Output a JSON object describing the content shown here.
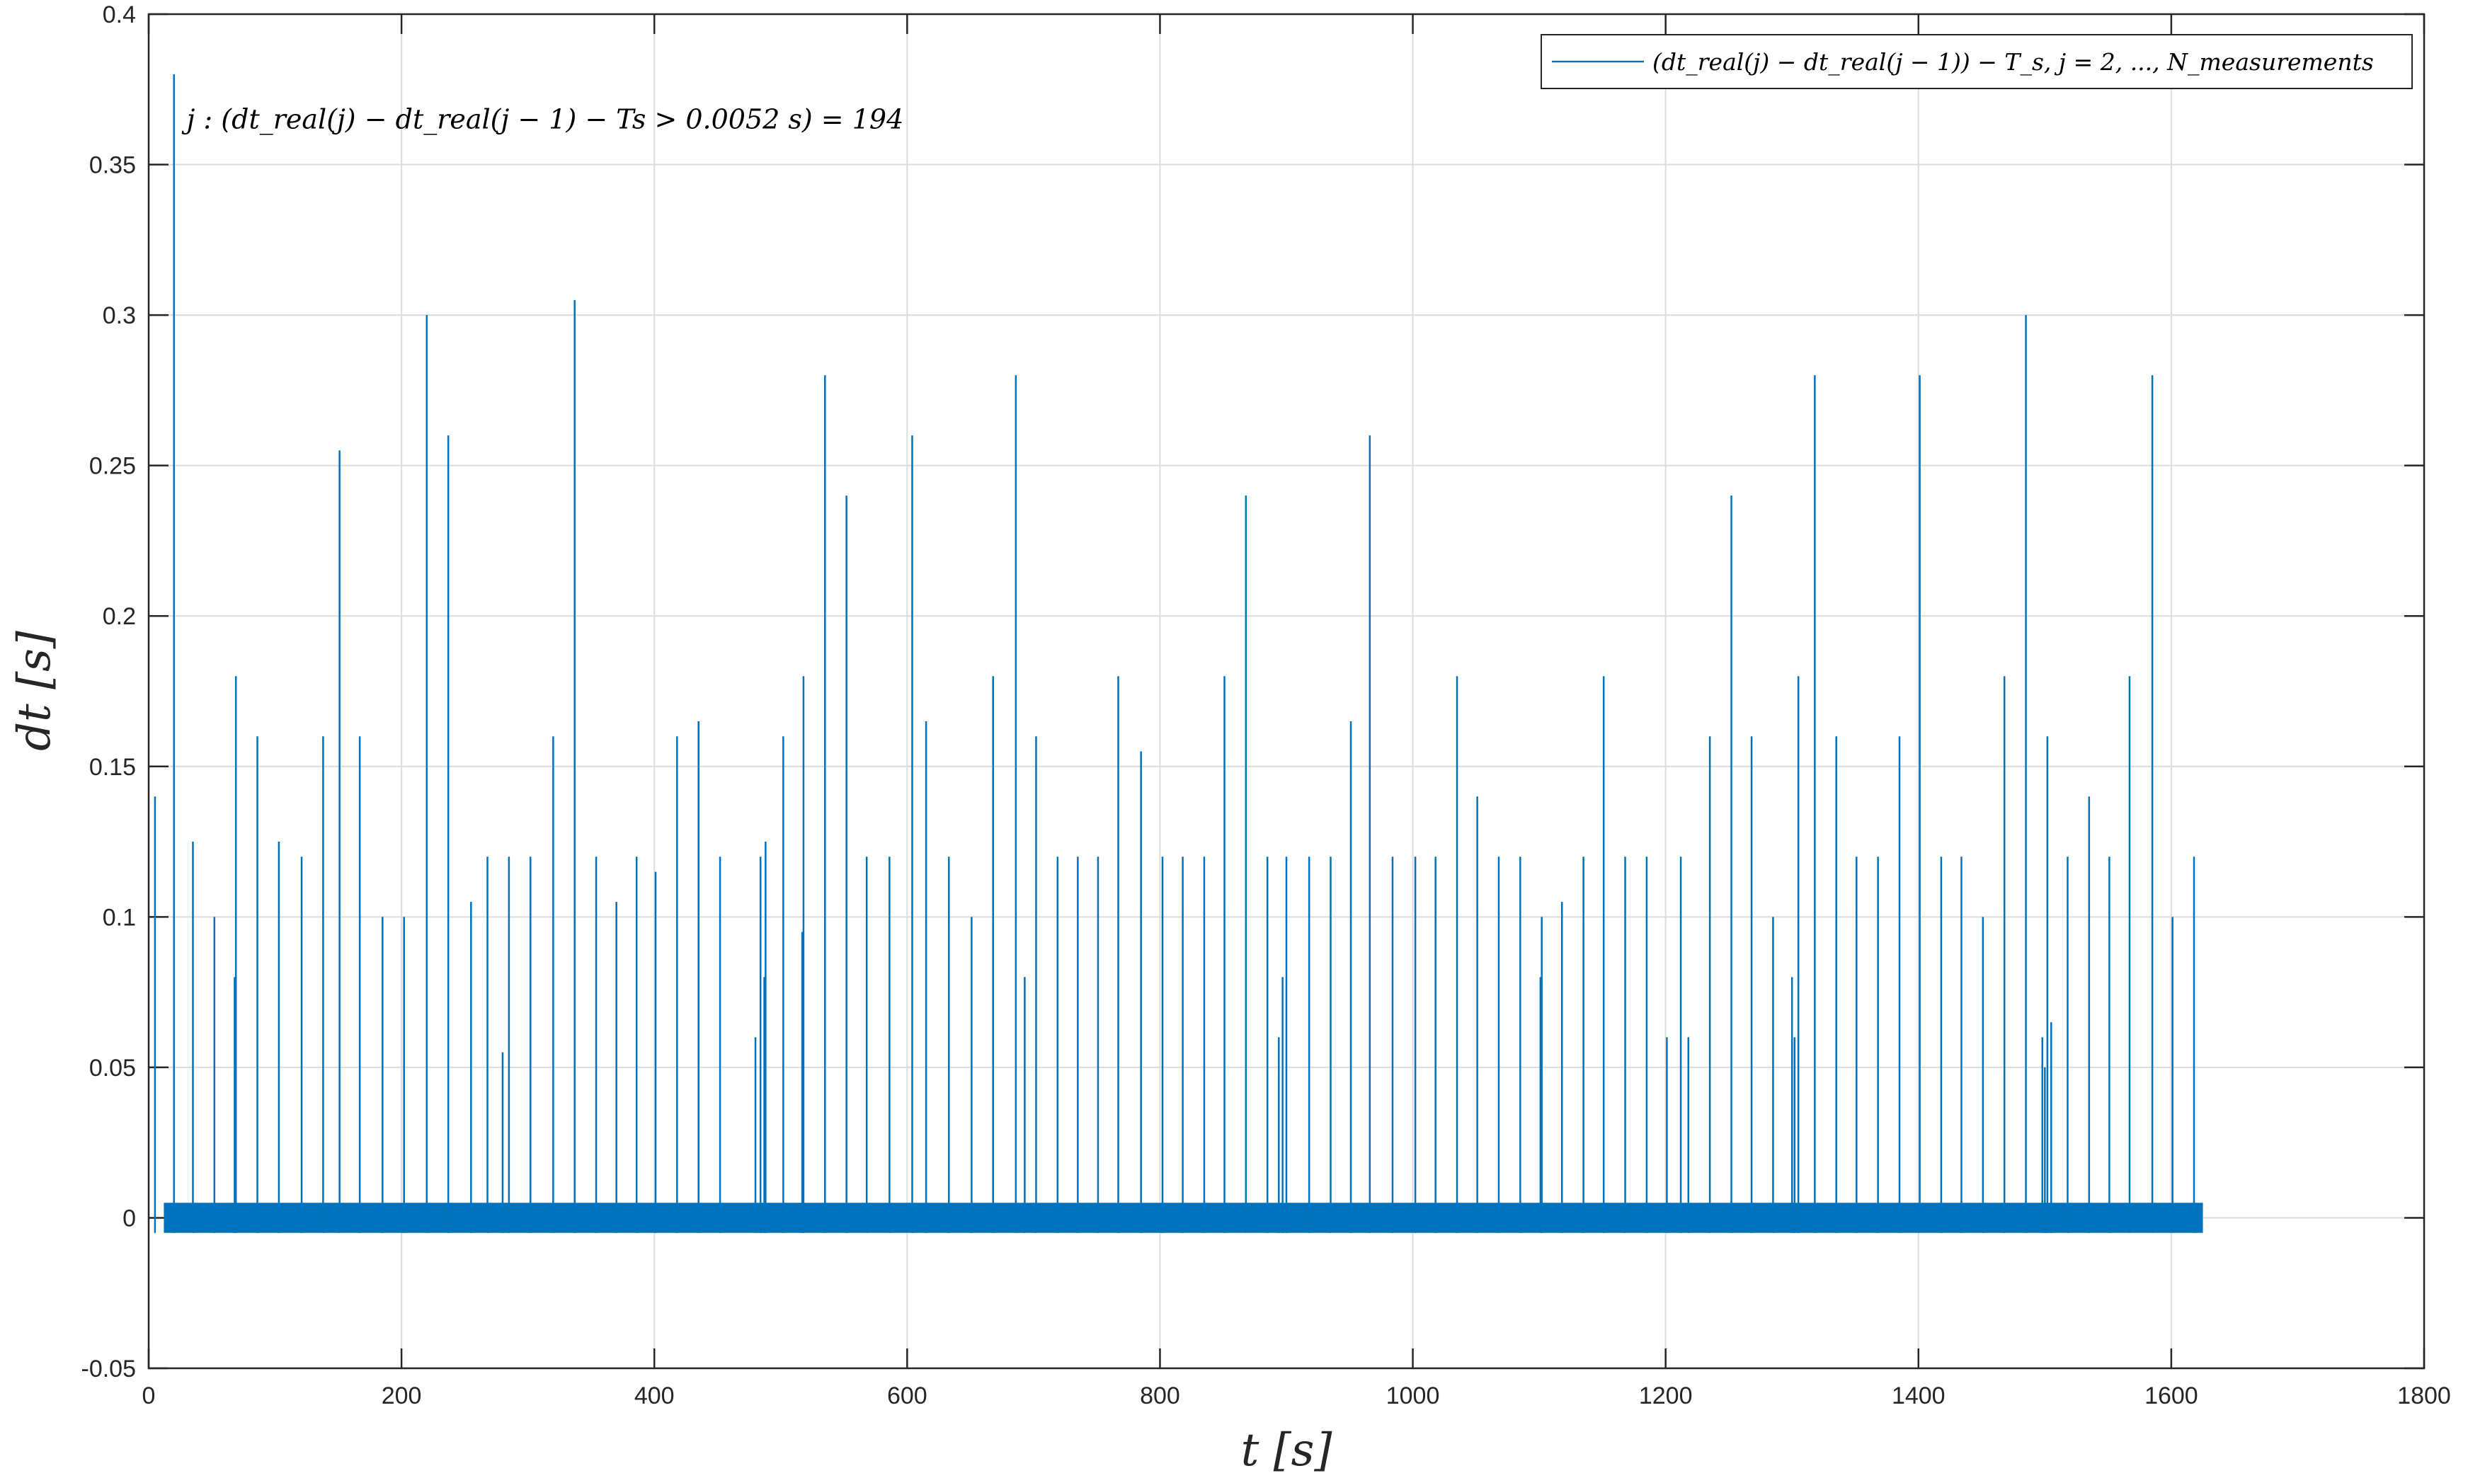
{
  "chart_data": {
    "type": "line",
    "title": "",
    "xlabel": "t [s]",
    "ylabel": "dt [s]",
    "xlim": [
      0,
      1800
    ],
    "ylim": [
      -0.05,
      0.4
    ],
    "xticks": [
      0,
      200,
      400,
      600,
      800,
      1000,
      1200,
      1400,
      1600,
      1800
    ],
    "xtick_labels": [
      "0",
      "200",
      "400",
      "600",
      "800",
      "1000",
      "1200",
      "1400",
      "1600",
      "1800"
    ],
    "yticks": [
      -0.05,
      0,
      0.05,
      0.1,
      0.15,
      0.2,
      0.25,
      0.3,
      0.35,
      0.4
    ],
    "ytick_labels": [
      "-0.05",
      "0",
      "0.05",
      "0.1",
      "0.15",
      "0.2",
      "0.25",
      "0.3",
      "0.35",
      "0.4"
    ],
    "grid": true,
    "legend_position": "top-right",
    "series_color": "#0072bd",
    "series": [
      {
        "name": "(dt_real(j) − dt_real(j − 1)) − T_s, j = 2, ..., N_measurements",
        "baseline_band": [
          -0.005,
          0.005
        ],
        "x_range": [
          12,
          1625
        ],
        "spikes_x": [
          5,
          20,
          35,
          52,
          68,
          69,
          86,
          103,
          121,
          138,
          151,
          167,
          185,
          202,
          220,
          237,
          255,
          268,
          280,
          285,
          302,
          320,
          337,
          354,
          370,
          386,
          401,
          418,
          435,
          452,
          480,
          484,
          487,
          488,
          502,
          517,
          518,
          535,
          552,
          568,
          586,
          604,
          615,
          633,
          651,
          668,
          686,
          693,
          702,
          719,
          735,
          751,
          767,
          785,
          802,
          818,
          835,
          851,
          868,
          885,
          894,
          897,
          900,
          918,
          935,
          951,
          966,
          984,
          1002,
          1018,
          1035,
          1051,
          1068,
          1085,
          1101,
          1102,
          1118,
          1135,
          1151,
          1168,
          1185,
          1201,
          1212,
          1218,
          1235,
          1252,
          1268,
          1285,
          1300,
          1302,
          1305,
          1318,
          1335,
          1351,
          1368,
          1385,
          1401,
          1418,
          1434,
          1451,
          1468,
          1485,
          1498,
          1500,
          1502,
          1505,
          1518,
          1535,
          1551,
          1567,
          1585,
          1601,
          1618
        ],
        "spikes_y": [
          0.14,
          0.38,
          0.125,
          0.1,
          0.08,
          0.18,
          0.16,
          0.125,
          0.12,
          0.16,
          0.255,
          0.16,
          0.1,
          0.1,
          0.3,
          0.26,
          0.105,
          0.12,
          0.055,
          0.12,
          0.12,
          0.16,
          0.305,
          0.12,
          0.105,
          0.12,
          0.115,
          0.16,
          0.165,
          0.12,
          0.06,
          0.12,
          0.08,
          0.125,
          0.16,
          0.095,
          0.18,
          0.28,
          0.24,
          0.12,
          0.12,
          0.26,
          0.165,
          0.12,
          0.1,
          0.18,
          0.28,
          0.08,
          0.16,
          0.12,
          0.12,
          0.12,
          0.18,
          0.155,
          0.12,
          0.12,
          0.12,
          0.18,
          0.24,
          0.12,
          0.06,
          0.08,
          0.12,
          0.12,
          0.12,
          0.165,
          0.26,
          0.12,
          0.12,
          0.12,
          0.18,
          0.14,
          0.12,
          0.12,
          0.08,
          0.1,
          0.105,
          0.12,
          0.18,
          0.12,
          0.12,
          0.06,
          0.12,
          0.06,
          0.16,
          0.24,
          0.16,
          0.1,
          0.08,
          0.06,
          0.18,
          0.28,
          0.16,
          0.12,
          0.12,
          0.16,
          0.28,
          0.12,
          0.12,
          0.1,
          0.18,
          0.3,
          0.06,
          0.05,
          0.16,
          0.065,
          0.12,
          0.14,
          0.12,
          0.18,
          0.28,
          0.1,
          0.12
        ]
      }
    ],
    "annotation": {
      "text": "j : (dt_real(j) − dt_real(j − 1) − Ts > 0.0052 s) = 194",
      "x": 30,
      "y": 0.362
    }
  }
}
